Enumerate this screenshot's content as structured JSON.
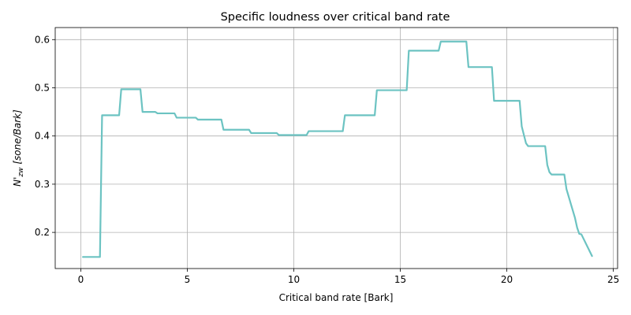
{
  "chart_data": {
    "type": "line",
    "title": "Specific loudness over critical band rate",
    "xlabel": "Critical band rate [Bark]",
    "ylabel_main": "N'",
    "ylabel_sub": "zw",
    "ylabel_unit": " [sone/Bark]",
    "xlim": [
      -1.2,
      25.2
    ],
    "ylim": [
      0.125,
      0.625
    ],
    "xticks": [
      0,
      5,
      10,
      15,
      20,
      25
    ],
    "yticks": [
      0.2,
      0.3,
      0.4,
      0.5,
      0.6
    ],
    "xtick_labels": [
      "0",
      "5",
      "10",
      "15",
      "20",
      "25"
    ],
    "ytick_labels": [
      "0.2",
      "0.3",
      "0.4",
      "0.5",
      "0.6"
    ],
    "grid": true,
    "series": [
      {
        "color": "#6cc3c2",
        "x": [
          0.1,
          0.9,
          1.0,
          1.8,
          1.9,
          2.8,
          2.9,
          3.5,
          3.6,
          4.4,
          4.5,
          5.4,
          5.5,
          6.6,
          6.7,
          7.9,
          8.0,
          9.2,
          9.3,
          10.6,
          10.7,
          12.3,
          12.4,
          13.8,
          13.9,
          15.3,
          15.4,
          16.8,
          16.9,
          18.1,
          18.2,
          19.3,
          19.4,
          20.6,
          20.7,
          20.9,
          21.0,
          21.8,
          21.9,
          22.0,
          22.1,
          22.7,
          22.8,
          23.0,
          23.2,
          23.3,
          23.4,
          23.5,
          24.0
        ],
        "y": [
          0.149,
          0.149,
          0.443,
          0.443,
          0.497,
          0.497,
          0.45,
          0.45,
          0.447,
          0.447,
          0.438,
          0.438,
          0.434,
          0.434,
          0.413,
          0.413,
          0.406,
          0.406,
          0.402,
          0.402,
          0.41,
          0.41,
          0.443,
          0.443,
          0.495,
          0.495,
          0.577,
          0.577,
          0.596,
          0.596,
          0.543,
          0.543,
          0.473,
          0.473,
          0.42,
          0.385,
          0.379,
          0.379,
          0.34,
          0.325,
          0.32,
          0.32,
          0.29,
          0.26,
          0.23,
          0.21,
          0.197,
          0.196,
          0.151
        ]
      }
    ]
  }
}
